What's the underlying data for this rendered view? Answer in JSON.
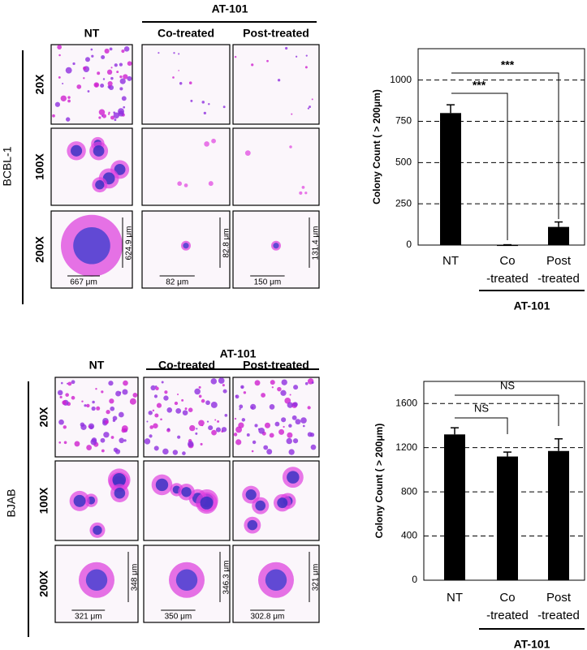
{
  "panels": [
    {
      "cell_line": "BCBL-1",
      "group_label": "AT-101",
      "columns": [
        "NT",
        "Co-treated",
        "Post-treated"
      ],
      "rows": [
        "20X",
        "100X",
        "200X"
      ],
      "scale_labels": [
        [
          "624.9 μm",
          "667 μm"
        ],
        [
          "82.8 μm",
          "82 μm"
        ],
        [
          "131.4 μm",
          "150 μm"
        ]
      ]
    },
    {
      "cell_line": "BJAB",
      "group_label": "AT-101",
      "columns": [
        "NT",
        "Co-treated",
        "Post-treated"
      ],
      "rows": [
        "20X",
        "100X",
        "200X"
      ],
      "scale_labels": [
        [
          "348 μm",
          "321 μm"
        ],
        [
          "346.3 μm",
          "350 μm"
        ],
        [
          "321 μm",
          "302.8 μm"
        ]
      ]
    }
  ],
  "chart_data": [
    {
      "type": "bar",
      "ylabel": "Colony Count ( > 200μm)",
      "categories": [
        "NT",
        "Co\n-treated",
        "Post\n-treated"
      ],
      "values": [
        800,
        2,
        110
      ],
      "errors": [
        50,
        0,
        30
      ],
      "color": "#000000",
      "ylim": [
        0,
        1190
      ],
      "yticks": [
        0,
        250,
        500,
        750,
        1000
      ],
      "grid": true,
      "group_label": "AT-101",
      "annotations": [
        "***",
        "***"
      ]
    },
    {
      "type": "bar",
      "ylabel": "Colony Count ( > 200μm)",
      "categories": [
        "NT",
        "Co\n-treated",
        "Post\n-treated"
      ],
      "values": [
        1320,
        1120,
        1170
      ],
      "errors": [
        60,
        40,
        110
      ],
      "color": "#000000",
      "ylim": [
        0,
        1800
      ],
      "yticks": [
        0,
        400,
        800,
        1200,
        1600
      ],
      "grid": true,
      "group_label": "AT-101",
      "annotations": [
        "NS",
        "NS"
      ]
    }
  ]
}
